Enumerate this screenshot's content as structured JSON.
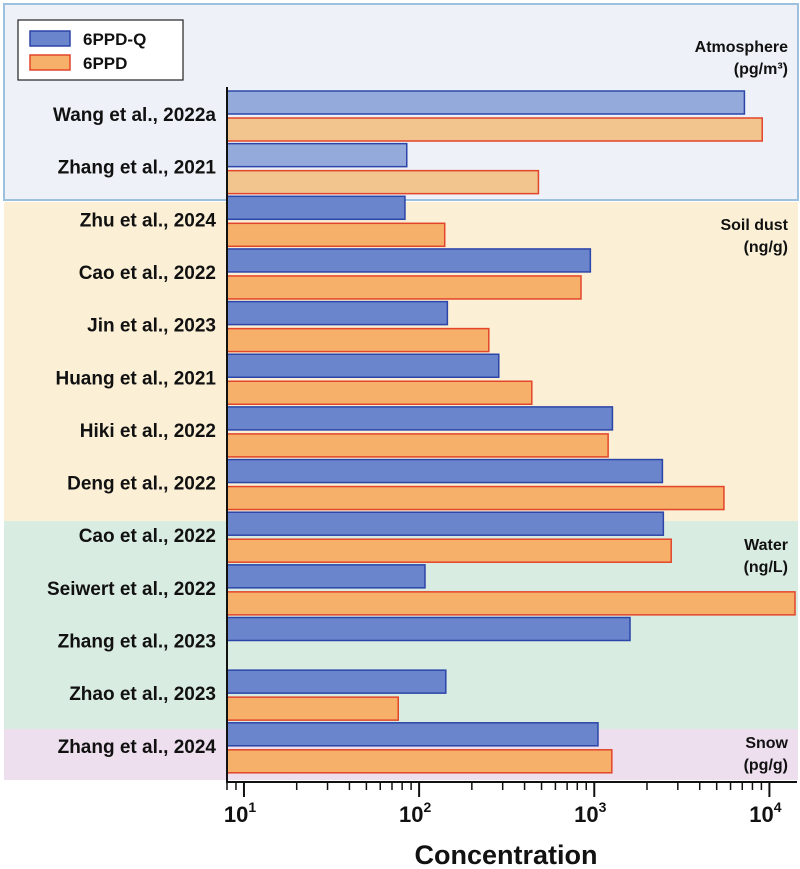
{
  "colors": {
    "q_bar": "#6b85cc",
    "q_border": "#2c45a8",
    "q_bar_atmo": "#93aadb",
    "p_bar": "#f6b06a",
    "p_border": "#e2452a",
    "p_bar_atmo": "#f2c48e",
    "atmo_bg": "#eef2f8",
    "atmo_border": "#9ec0df",
    "soil_bg": "#fbf0d6",
    "water_bg": "#d9ece2",
    "snow_bg": "#eddfee"
  },
  "chart_data": {
    "type": "bar",
    "orientation": "horizontal",
    "xscale": "log",
    "xlim": [
      8,
      14000
    ],
    "xlabel": "Concentration",
    "x_ticks": [
      10,
      100,
      1000,
      10000
    ],
    "x_tick_labels": [
      {
        "base": "10",
        "exp": "1"
      },
      {
        "base": "10",
        "exp": "2"
      },
      {
        "base": "10",
        "exp": "3"
      },
      {
        "base": "10",
        "exp": "4"
      }
    ],
    "legend": {
      "placement": "top-left",
      "entries": [
        {
          "key": "q",
          "name": "6PPD-Q"
        },
        {
          "key": "p",
          "name": "6PPD"
        }
      ]
    },
    "groups": [
      {
        "key": "atmo",
        "label_lines": [
          "Atmosphere",
          "(pg/m³)"
        ],
        "rows": [
          0,
          1
        ]
      },
      {
        "key": "soil",
        "label_lines": [
          "Soil dust",
          "(ng/g)"
        ],
        "rows": [
          2,
          3,
          4,
          5,
          6,
          7
        ]
      },
      {
        "key": "water",
        "label_lines": [
          "Water",
          "(ng/L)"
        ],
        "rows": [
          8,
          9,
          10,
          11
        ]
      },
      {
        "key": "snow",
        "label_lines": [
          "Snow",
          "(pg/g)"
        ],
        "rows": [
          12
        ]
      }
    ],
    "categories": [
      "Wang et al., 2022a",
      "Zhang et al., 2021",
      "Zhu et al., 2024",
      "Cao et al., 2022",
      "Jin et al., 2023",
      "Huang et al., 2021",
      "Hiki et al., 2022",
      "Deng et al., 2022",
      "Cao et al., 2022",
      "Seiwert et al., 2022",
      "Zhang et al., 2023",
      "Zhao et al., 2023",
      "Zhang et al., 2024"
    ],
    "series": [
      {
        "key": "q",
        "name": "6PPD-Q",
        "values": [
          7200,
          85,
          83,
          950,
          145,
          285,
          1270,
          2450,
          2480,
          108,
          1600,
          142,
          1050
        ]
      },
      {
        "key": "p",
        "name": "6PPD",
        "values": [
          9100,
          480,
          140,
          840,
          250,
          440,
          1200,
          5500,
          2750,
          14000,
          null,
          76,
          1260
        ]
      }
    ]
  }
}
